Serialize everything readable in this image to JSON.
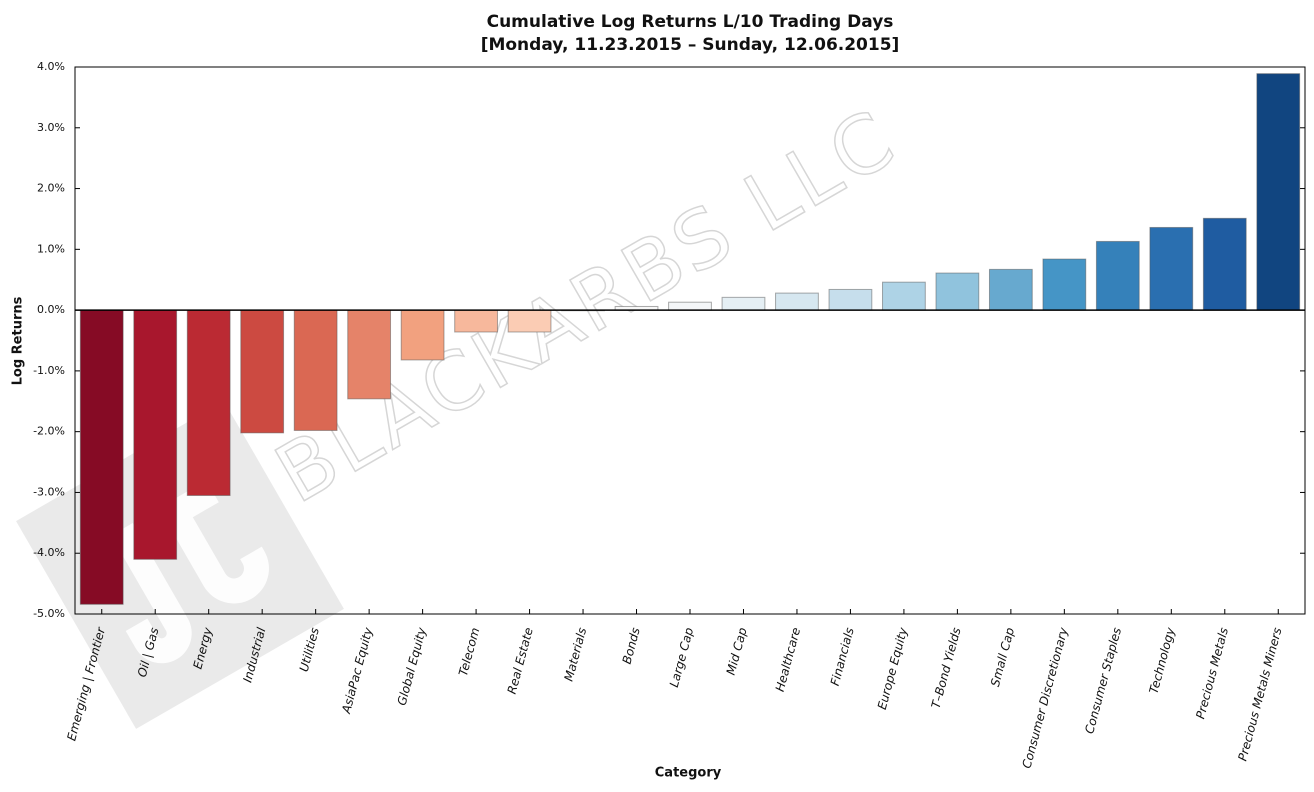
{
  "chart_data": {
    "type": "bar",
    "title": "Cumulative Log Returns L/10 Trading Days",
    "subtitle": "[Monday, 11.23.2015 – Sunday, 12.06.2015]",
    "x_label": "Category",
    "y_label": "Log Returns",
    "watermark": "BLACKARBS LLC",
    "categories": [
      "Emerging | Frontier",
      "Oil | Gas",
      "Energy",
      "Industrial",
      "Utilities",
      "AsiaPac Equity",
      "Global Equity",
      "Telecom",
      "Real Estate",
      "Materials",
      "Bonds",
      "Large Cap",
      "Mid Cap",
      "Healthcare",
      "Financials",
      "Europe Equity",
      "T–Bond Yields",
      "Small Cap",
      "Consumer Discretionary",
      "Consumer Staples",
      "Technology",
      "Precious Metals",
      "Precious Metals Miners"
    ],
    "values": [
      -4.84,
      -4.1,
      -3.05,
      -2.02,
      -1.98,
      -1.46,
      -0.82,
      -0.36,
      -0.36,
      -0.01,
      0.06,
      0.13,
      0.21,
      0.28,
      0.34,
      0.46,
      0.61,
      0.67,
      0.84,
      1.13,
      1.36,
      1.51,
      3.89
    ],
    "colors": [
      "#860b25",
      "#a8172d",
      "#bb2a33",
      "#cc4a41",
      "#da6853",
      "#e58369",
      "#f2a17f",
      "#f7b89c",
      "#fbccb4",
      "#f9ece4",
      "#f7f7f7",
      "#f4f6f8",
      "#e5eff4",
      "#d6e7f0",
      "#c6deec",
      "#aed3e6",
      "#90c3dd",
      "#67a9cf",
      "#4595c6",
      "#3581ba",
      "#2a6fb0",
      "#1f5ca1",
      "#114580"
    ],
    "ylim": [
      -5,
      4
    ],
    "yticks": [
      {
        "value": -5,
        "label": "-5.0%"
      },
      {
        "value": -4,
        "label": "-4.0%"
      },
      {
        "value": -3,
        "label": "-3.0%"
      },
      {
        "value": -2,
        "label": "-2.0%"
      },
      {
        "value": -1,
        "label": "-1.0%"
      },
      {
        "value": 0,
        "label": "0.0%"
      },
      {
        "value": 1,
        "label": "1.0%"
      },
      {
        "value": 2,
        "label": "2.0%"
      },
      {
        "value": 3,
        "label": "3.0%"
      },
      {
        "value": 4,
        "label": "4.0%"
      }
    ],
    "grid": false
  }
}
